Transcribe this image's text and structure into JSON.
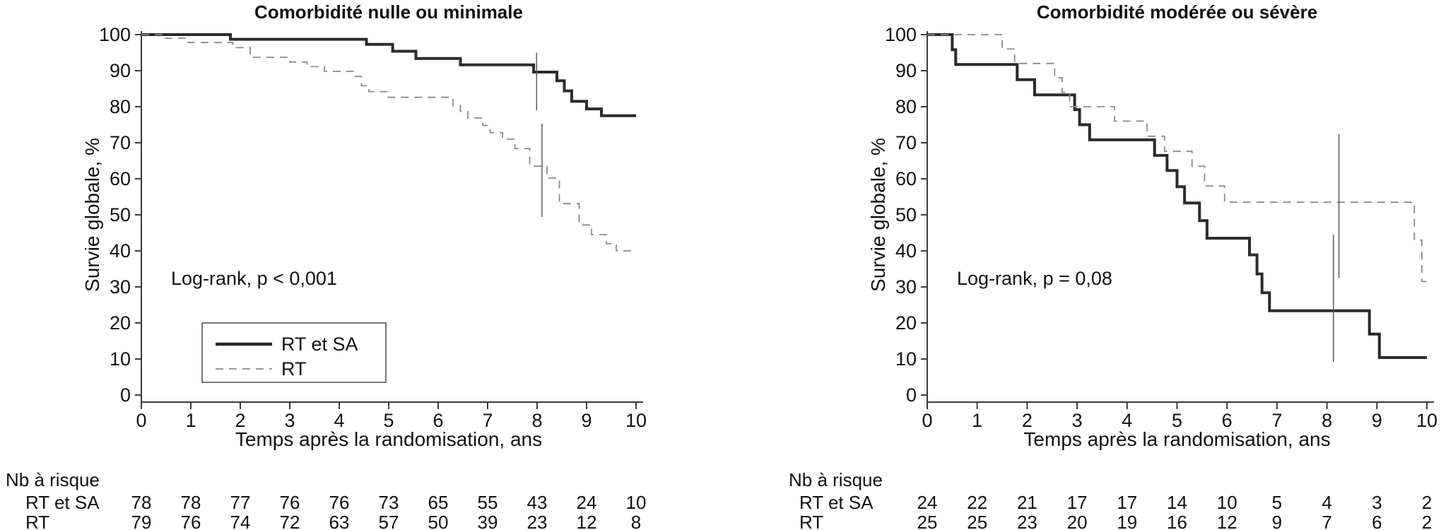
{
  "figure": {
    "background": "#ffffff",
    "colors": {
      "solid_series": "#2b2b2b",
      "dashed_series": "#8a8a8a",
      "axis": "#3a3a3a",
      "censor_line": "#5a5a5a",
      "text": "#111111"
    }
  },
  "chart_data": [
    {
      "type": "line",
      "subtype": "kaplan-meier-step",
      "title": "Comorbidité nulle ou minimale",
      "xlabel": "Temps après la randomisation, ans",
      "ylabel": "Survie globale, %",
      "xlim": [
        0,
        10
      ],
      "ylim": [
        0,
        100
      ],
      "xticks": [
        0,
        1,
        2,
        3,
        4,
        5,
        6,
        7,
        8,
        9,
        10
      ],
      "yticks": [
        0,
        10,
        20,
        30,
        40,
        50,
        60,
        70,
        80,
        90,
        100
      ],
      "grid": false,
      "annotation": "Log-rank, p < 0,001",
      "legend": [
        {
          "name": "RT et SA",
          "style": "solid"
        },
        {
          "name": "RT",
          "style": "dashed"
        }
      ],
      "series": [
        {
          "name": "RT et SA",
          "style": "solid",
          "points": [
            [
              0,
              100
            ],
            [
              1.8,
              100
            ],
            [
              1.8,
              98.7
            ],
            [
              4.55,
              98.7
            ],
            [
              4.55,
              97.3
            ],
            [
              5.08,
              97.3
            ],
            [
              5.08,
              95.4
            ],
            [
              5.55,
              95.4
            ],
            [
              5.55,
              93.4
            ],
            [
              6.45,
              93.4
            ],
            [
              6.45,
              91.6
            ],
            [
              7.93,
              91.6
            ],
            [
              7.93,
              89.6
            ],
            [
              8.4,
              89.6
            ],
            [
              8.4,
              87.2
            ],
            [
              8.55,
              87.2
            ],
            [
              8.55,
              84.4
            ],
            [
              8.7,
              84.4
            ],
            [
              8.7,
              81.5
            ],
            [
              9.0,
              81.5
            ],
            [
              9.0,
              79.4
            ],
            [
              9.3,
              79.4
            ],
            [
              9.3,
              77.5
            ],
            [
              10,
              77.5
            ]
          ]
        },
        {
          "name": "RT",
          "style": "dashed",
          "points": [
            [
              0,
              100
            ],
            [
              0.45,
              100
            ],
            [
              0.45,
              99
            ],
            [
              0.95,
              99
            ],
            [
              0.95,
              97.8
            ],
            [
              1.85,
              97.8
            ],
            [
              1.85,
              96.4
            ],
            [
              2.2,
              96.4
            ],
            [
              2.2,
              93.7
            ],
            [
              3.0,
              93.7
            ],
            [
              3.0,
              92.4
            ],
            [
              3.35,
              92.4
            ],
            [
              3.35,
              91.1
            ],
            [
              3.7,
              91.1
            ],
            [
              3.7,
              89.8
            ],
            [
              4.3,
              89.8
            ],
            [
              4.3,
              88.4
            ],
            [
              4.45,
              88.4
            ],
            [
              4.45,
              85.8
            ],
            [
              4.6,
              85.8
            ],
            [
              4.6,
              84.2
            ],
            [
              4.97,
              84.2
            ],
            [
              4.97,
              82.6
            ],
            [
              6.3,
              82.6
            ],
            [
              6.3,
              80.3
            ],
            [
              6.45,
              80.3
            ],
            [
              6.45,
              78.7
            ],
            [
              6.6,
              78.7
            ],
            [
              6.6,
              76.9
            ],
            [
              6.9,
              76.9
            ],
            [
              6.9,
              74.8
            ],
            [
              7.05,
              74.8
            ],
            [
              7.05,
              72.8
            ],
            [
              7.3,
              72.8
            ],
            [
              7.3,
              71
            ],
            [
              7.55,
              71
            ],
            [
              7.55,
              68.4
            ],
            [
              7.85,
              68.4
            ],
            [
              7.85,
              63.5
            ],
            [
              8.2,
              63.5
            ],
            [
              8.2,
              60.2
            ],
            [
              8.45,
              60.2
            ],
            [
              8.45,
              53.1
            ],
            [
              8.85,
              53.1
            ],
            [
              8.85,
              47.2
            ],
            [
              9.1,
              47.2
            ],
            [
              9.1,
              44.5
            ],
            [
              9.4,
              44.5
            ],
            [
              9.4,
              42
            ],
            [
              9.6,
              42
            ],
            [
              9.6,
              40
            ],
            [
              10,
              40
            ]
          ]
        }
      ],
      "censor_marks": [
        {
          "x": 7.99,
          "y_from": 95,
          "y_to": 79
        },
        {
          "x": 8.1,
          "y_from": 75.3,
          "y_to": 49.4
        }
      ],
      "risk_table": {
        "label": "Nb à risque",
        "times": [
          0,
          1,
          2,
          3,
          4,
          5,
          6,
          7,
          8,
          9,
          10
        ],
        "rows": [
          {
            "name": "RT et SA",
            "values": [
              78,
              78,
              77,
              76,
              76,
              73,
              65,
              55,
              43,
              24,
              10
            ]
          },
          {
            "name": "RT",
            "values": [
              79,
              76,
              74,
              72,
              63,
              57,
              50,
              39,
              23,
              12,
              8
            ]
          }
        ]
      }
    },
    {
      "type": "line",
      "subtype": "kaplan-meier-step",
      "title": "Comorbidité modérée ou sévère",
      "xlabel": "Temps après la randomisation, ans",
      "ylabel": "Survie globale, %",
      "xlim": [
        0,
        10
      ],
      "ylim": [
        0,
        100
      ],
      "xticks": [
        0,
        1,
        2,
        3,
        4,
        5,
        6,
        7,
        8,
        9,
        10
      ],
      "yticks": [
        0,
        10,
        20,
        30,
        40,
        50,
        60,
        70,
        80,
        90,
        100
      ],
      "grid": false,
      "annotation": "Log-rank, p = 0,08",
      "series": [
        {
          "name": "RT et SA",
          "style": "solid",
          "points": [
            [
              0,
              100
            ],
            [
              0.5,
              100
            ],
            [
              0.5,
              95.8
            ],
            [
              0.57,
              95.8
            ],
            [
              0.57,
              91.7
            ],
            [
              1.8,
              91.7
            ],
            [
              1.8,
              87.5
            ],
            [
              2.15,
              87.5
            ],
            [
              2.15,
              83.3
            ],
            [
              2.95,
              83.3
            ],
            [
              2.95,
              79.2
            ],
            [
              3.05,
              79.2
            ],
            [
              3.05,
              75
            ],
            [
              3.25,
              75
            ],
            [
              3.25,
              70.8
            ],
            [
              4.55,
              70.8
            ],
            [
              4.55,
              66.5
            ],
            [
              4.8,
              66.5
            ],
            [
              4.8,
              62.3
            ],
            [
              5.0,
              62.3
            ],
            [
              5.0,
              57.8
            ],
            [
              5.15,
              57.8
            ],
            [
              5.15,
              53.3
            ],
            [
              5.45,
              53.3
            ],
            [
              5.45,
              48.4
            ],
            [
              5.6,
              48.4
            ],
            [
              5.6,
              43.5
            ],
            [
              6.45,
              43.5
            ],
            [
              6.45,
              38.9
            ],
            [
              6.6,
              38.9
            ],
            [
              6.6,
              33.6
            ],
            [
              6.7,
              33.6
            ],
            [
              6.7,
              28.4
            ],
            [
              6.85,
              28.4
            ],
            [
              6.85,
              23.4
            ],
            [
              8.85,
              23.4
            ],
            [
              8.85,
              16.9
            ],
            [
              9.05,
              16.9
            ],
            [
              9.05,
              10.4
            ],
            [
              10,
              10.4
            ]
          ]
        },
        {
          "name": "RT",
          "style": "dashed",
          "points": [
            [
              0,
              100
            ],
            [
              1.5,
              100
            ],
            [
              1.5,
              96
            ],
            [
              1.75,
              96
            ],
            [
              1.75,
              92
            ],
            [
              2.55,
              92
            ],
            [
              2.55,
              88
            ],
            [
              2.7,
              88
            ],
            [
              2.7,
              84
            ],
            [
              2.85,
              84
            ],
            [
              2.85,
              80
            ],
            [
              3.75,
              80
            ],
            [
              3.75,
              76
            ],
            [
              4.4,
              76
            ],
            [
              4.4,
              71.8
            ],
            [
              4.75,
              71.8
            ],
            [
              4.75,
              67.6
            ],
            [
              5.3,
              67.6
            ],
            [
              5.3,
              63.5
            ],
            [
              5.55,
              63.5
            ],
            [
              5.55,
              58
            ],
            [
              5.95,
              58
            ],
            [
              5.95,
              53.5
            ],
            [
              9.75,
              53.5
            ],
            [
              9.75,
              43
            ],
            [
              9.9,
              43
            ],
            [
              9.9,
              31.5
            ],
            [
              10,
              31.5
            ]
          ]
        }
      ],
      "censor_marks": [
        {
          "x": 8.13,
          "y_from": 44.5,
          "y_to": 9.2
        },
        {
          "x": 8.24,
          "y_from": 72.4,
          "y_to": 32.5
        }
      ],
      "risk_table": {
        "label": "Nb à risque",
        "times": [
          0,
          1,
          2,
          3,
          4,
          5,
          6,
          7,
          8,
          9,
          10
        ],
        "rows": [
          {
            "name": "RT et SA",
            "values": [
              24,
              22,
              21,
              17,
              17,
              14,
              10,
              5,
              4,
              3,
              2
            ]
          },
          {
            "name": "RT",
            "values": [
              25,
              25,
              23,
              20,
              19,
              16,
              12,
              9,
              7,
              6,
              2
            ]
          }
        ]
      }
    }
  ]
}
